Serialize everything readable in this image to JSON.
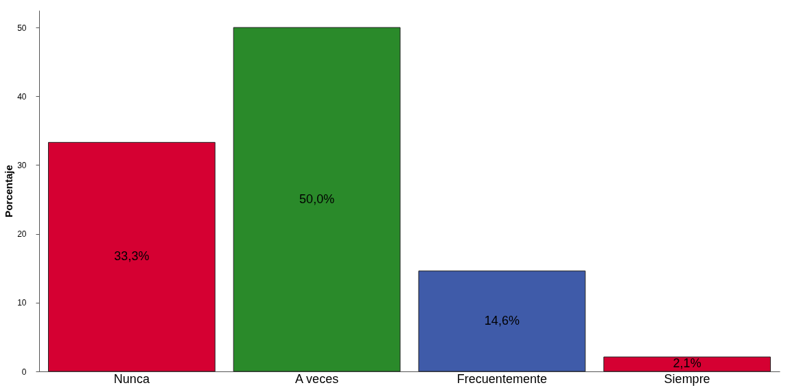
{
  "chart_data": {
    "type": "bar",
    "ylabel": "Porcentaje",
    "categories": [
      "Nunca",
      "A veces",
      "Frecuentemente",
      "Siempre"
    ],
    "values": [
      33.3,
      50.0,
      14.6,
      2.1
    ],
    "colors": [
      "#d50032",
      "#2a8a2a",
      "#3f5ba9",
      "#d50032"
    ],
    "value_labels": [
      "33,3%",
      "50,0%",
      "14,6%",
      "2,1%"
    ],
    "ylim": [
      0,
      52.5
    ],
    "yticks": [
      0,
      10,
      20,
      30,
      40,
      50
    ],
    "grid": false
  }
}
